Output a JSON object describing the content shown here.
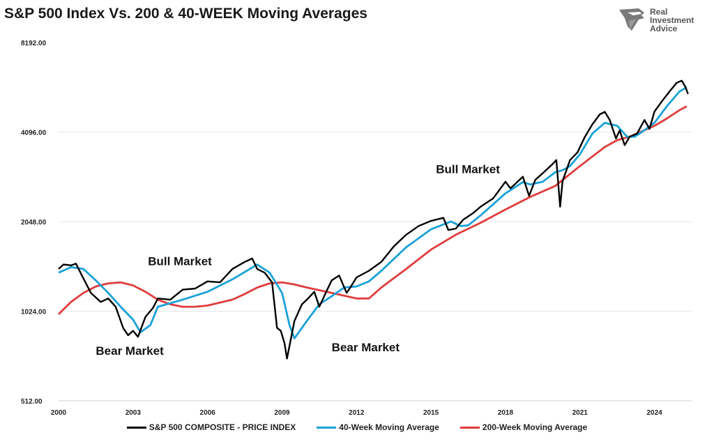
{
  "header": {
    "title": "S&P 500 Index Vs. 200 & 40-WEEK Moving Averages"
  },
  "logo": {
    "line1": "Real",
    "line2": "Investment",
    "line3": "Advice",
    "icon": "eagle-head-icon"
  },
  "chart_data": {
    "type": "line",
    "yscale": "log2",
    "ylim": [
      512,
      8192
    ],
    "xlim": [
      2000,
      2025.5
    ],
    "yticks": [
      "8192.00",
      "4096.00",
      "2048.00",
      "1024.00",
      "512.00"
    ],
    "ytick_values": [
      8192,
      4096,
      2048,
      1024,
      512
    ],
    "xticks": [
      "2000",
      "2003",
      "2006",
      "2009",
      "2012",
      "2015",
      "2018",
      "2021",
      "2024"
    ],
    "xtick_values": [
      2000,
      2003,
      2006,
      2009,
      2012,
      2015,
      2018,
      2021,
      2024
    ],
    "grid": "horizontal",
    "legend_position": "bottom",
    "colors": {
      "price": "#000000",
      "ma40": "#1aa1d8",
      "ma200": "#e03c3c"
    },
    "series": [
      {
        "name": "S&P 500 COMPOSITE - PRICE INDEX",
        "x": [
          2000.0,
          2000.2,
          2000.5,
          2000.7,
          2001.0,
          2001.3,
          2001.7,
          2002.0,
          2002.3,
          2002.6,
          2002.8,
          2003.0,
          2003.2,
          2003.5,
          2003.8,
          2004.0,
          2004.5,
          2005.0,
          2005.5,
          2006.0,
          2006.5,
          2007.0,
          2007.5,
          2007.8,
          2008.0,
          2008.3,
          2008.6,
          2008.8,
          2008.95,
          2009.1,
          2009.2,
          2009.5,
          2009.8,
          2010.0,
          2010.3,
          2010.5,
          2010.8,
          2011.0,
          2011.3,
          2011.6,
          2011.75,
          2012.0,
          2012.5,
          2013.0,
          2013.5,
          2014.0,
          2014.5,
          2015.0,
          2015.5,
          2015.7,
          2016.0,
          2016.3,
          2016.7,
          2017.0,
          2017.5,
          2018.0,
          2018.2,
          2018.7,
          2018.95,
          2019.2,
          2019.5,
          2019.9,
          2020.05,
          2020.2,
          2020.3,
          2020.6,
          2020.9,
          2021.2,
          2021.5,
          2021.8,
          2022.0,
          2022.2,
          2022.45,
          2022.6,
          2022.8,
          2023.0,
          2023.3,
          2023.6,
          2023.8,
          2024.0,
          2024.3,
          2024.6,
          2024.9,
          2025.1,
          2025.25,
          2025.35
        ],
        "values": [
          1420,
          1470,
          1460,
          1480,
          1320,
          1180,
          1100,
          1130,
          1060,
          900,
          850,
          880,
          840,
          980,
          1050,
          1130,
          1120,
          1210,
          1220,
          1290,
          1280,
          1420,
          1500,
          1540,
          1420,
          1380,
          1280,
          900,
          880,
          800,
          710,
          950,
          1080,
          1120,
          1190,
          1060,
          1200,
          1300,
          1350,
          1180,
          1230,
          1330,
          1400,
          1500,
          1690,
          1850,
          1980,
          2060,
          2110,
          1920,
          1940,
          2080,
          2190,
          2300,
          2450,
          2790,
          2650,
          2900,
          2500,
          2830,
          2980,
          3200,
          3300,
          2300,
          2800,
          3300,
          3500,
          3950,
          4350,
          4700,
          4790,
          4500,
          3900,
          4150,
          3700,
          3950,
          4050,
          4500,
          4200,
          4800,
          5200,
          5600,
          6000,
          6100,
          5800,
          5500
        ]
      },
      {
        "name": "40-Week Moving Average",
        "x": [
          2000.0,
          2000.5,
          2001.0,
          2001.5,
          2002.0,
          2002.5,
          2003.0,
          2003.3,
          2003.7,
          2004.0,
          2005.0,
          2006.0,
          2007.0,
          2008.0,
          2008.5,
          2009.0,
          2009.3,
          2009.5,
          2010.0,
          2010.5,
          2011.0,
          2011.5,
          2012.0,
          2012.5,
          2013.0,
          2014.0,
          2015.0,
          2015.8,
          2016.2,
          2016.5,
          2017.0,
          2018.0,
          2018.7,
          2019.0,
          2019.5,
          2020.0,
          2020.3,
          2020.6,
          2021.0,
          2021.5,
          2022.0,
          2022.5,
          2022.9,
          2023.2,
          2023.5,
          2024.0,
          2024.5,
          2025.0,
          2025.3
        ],
        "values": [
          1380,
          1440,
          1420,
          1300,
          1180,
          1060,
          960,
          870,
          920,
          1060,
          1120,
          1190,
          1310,
          1470,
          1380,
          1180,
          920,
          830,
          950,
          1080,
          1150,
          1230,
          1240,
          1290,
          1400,
          1680,
          1930,
          2050,
          1980,
          1990,
          2150,
          2550,
          2780,
          2730,
          2790,
          3000,
          3050,
          3150,
          3450,
          4050,
          4400,
          4300,
          3950,
          3950,
          4100,
          4400,
          5000,
          5600,
          5800
        ]
      },
      {
        "name": "200-Week Moving Average",
        "x": [
          2000.0,
          2000.5,
          2001.0,
          2001.5,
          2002.0,
          2002.5,
          2003.0,
          2003.5,
          2004.0,
          2004.5,
          2005.0,
          2005.5,
          2006.0,
          2007.0,
          2007.5,
          2008.0,
          2008.5,
          2009.0,
          2009.5,
          2010.0,
          2011.0,
          2012.0,
          2012.5,
          2013.0,
          2014.0,
          2015.0,
          2016.0,
          2017.0,
          2018.0,
          2019.0,
          2020.0,
          2021.0,
          2022.0,
          2022.5,
          2023.0,
          2024.0,
          2024.5,
          2025.0,
          2025.3
        ],
        "values": [
          1000,
          1100,
          1180,
          1240,
          1270,
          1280,
          1250,
          1190,
          1120,
          1080,
          1060,
          1060,
          1070,
          1120,
          1170,
          1230,
          1270,
          1280,
          1260,
          1230,
          1180,
          1130,
          1130,
          1230,
          1420,
          1650,
          1850,
          2030,
          2250,
          2480,
          2700,
          3150,
          3650,
          3850,
          3950,
          4300,
          4550,
          4850,
          5000
        ]
      }
    ],
    "annotations": [
      {
        "text": "Bull Market",
        "x": 2003.6,
        "y": 1460
      },
      {
        "text": "Bear Market",
        "x": 2001.5,
        "y": 730
      },
      {
        "text": "Bear Market",
        "x": 2011.0,
        "y": 750
      },
      {
        "text": "Bull Market",
        "x": 2015.2,
        "y": 2980
      }
    ]
  }
}
